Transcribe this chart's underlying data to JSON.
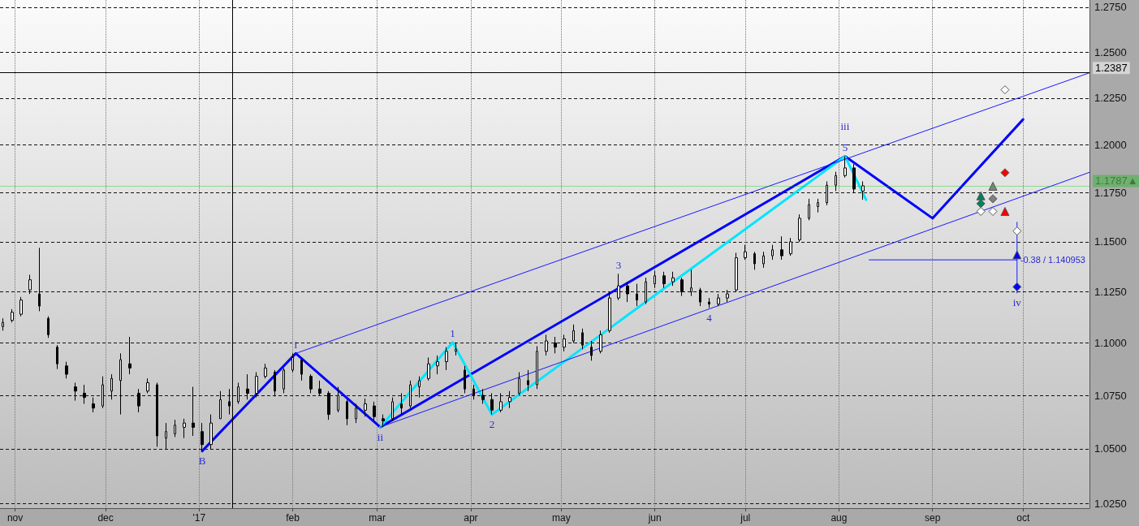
{
  "chart_data": {
    "type": "candlestick",
    "x": [
      "2016-10-28",
      "2016-10-31",
      "2016-11-03",
      "2016-11-06",
      "2016-11-09",
      "2016-11-12",
      "2016-11-15",
      "2016-11-18",
      "2016-11-21",
      "2016-11-24",
      "2016-11-27",
      "2016-11-30",
      "2016-12-03",
      "2016-12-06",
      "2016-12-09",
      "2016-12-12",
      "2016-12-15",
      "2016-12-18",
      "2016-12-21",
      "2016-12-24",
      "2016-12-27",
      "2016-12-30",
      "2017-01-02",
      "2017-01-05",
      "2017-01-08",
      "2017-01-11",
      "2017-01-14",
      "2017-01-17",
      "2017-01-20",
      "2017-01-23",
      "2017-01-26",
      "2017-01-29",
      "2017-02-01",
      "2017-02-04",
      "2017-02-07",
      "2017-02-10",
      "2017-02-13",
      "2017-02-16",
      "2017-02-19",
      "2017-02-22",
      "2017-02-25",
      "2017-02-28",
      "2017-03-03",
      "2017-03-06",
      "2017-03-09",
      "2017-03-12",
      "2017-03-15",
      "2017-03-18",
      "2017-03-21",
      "2017-03-24",
      "2017-03-27",
      "2017-03-30",
      "2017-04-02",
      "2017-04-05",
      "2017-04-08",
      "2017-04-11",
      "2017-04-14",
      "2017-04-17",
      "2017-04-20",
      "2017-04-23",
      "2017-04-26",
      "2017-04-29",
      "2017-05-02",
      "2017-05-05",
      "2017-05-08",
      "2017-05-11",
      "2017-05-14",
      "2017-05-17",
      "2017-05-20",
      "2017-05-23",
      "2017-05-26",
      "2017-05-29",
      "2017-06-01",
      "2017-06-04",
      "2017-06-07",
      "2017-06-10",
      "2017-06-13",
      "2017-06-16",
      "2017-06-19",
      "2017-06-22",
      "2017-06-25",
      "2017-06-28",
      "2017-07-01",
      "2017-07-04",
      "2017-07-07",
      "2017-07-10",
      "2017-07-13",
      "2017-07-16",
      "2017-07-19",
      "2017-07-22",
      "2017-07-25",
      "2017-07-28",
      "2017-07-31",
      "2017-08-03",
      "2017-08-06",
      "2017-08-09"
    ],
    "ohlc": [
      [
        1.108,
        1.112,
        1.106,
        1.11
      ],
      [
        1.111,
        1.1165,
        1.11,
        1.115
      ],
      [
        1.114,
        1.1225,
        1.113,
        1.121
      ],
      [
        1.126,
        1.1335,
        1.124,
        1.131
      ],
      [
        1.124,
        1.147,
        1.1155,
        1.118
      ],
      [
        1.112,
        1.113,
        1.1025,
        1.104
      ],
      [
        1.098,
        1.099,
        1.0875,
        1.09
      ],
      [
        1.089,
        1.091,
        1.083,
        1.085
      ],
      [
        1.079,
        1.081,
        1.0725,
        1.077
      ],
      [
        1.076,
        1.08,
        1.071,
        1.074
      ],
      [
        1.071,
        1.074,
        1.067,
        1.069
      ],
      [
        1.07,
        1.084,
        1.069,
        1.08
      ],
      [
        1.077,
        1.085,
        1.073,
        1.083
      ],
      [
        1.082,
        1.095,
        1.066,
        1.092
      ],
      [
        1.09,
        1.103,
        1.085,
        1.088
      ],
      [
        1.076,
        1.078,
        1.067,
        1.07
      ],
      [
        1.077,
        1.083,
        1.076,
        1.081
      ],
      [
        1.08,
        1.081,
        1.051,
        1.056
      ],
      [
        1.055,
        1.062,
        1.05,
        1.058
      ],
      [
        1.057,
        1.0635,
        1.0555,
        1.061
      ],
      [
        1.06,
        1.064,
        1.055,
        1.062
      ],
      [
        1.062,
        1.079,
        1.056,
        1.06
      ],
      [
        1.058,
        1.062,
        1.049,
        1.052
      ],
      [
        1.052,
        1.066,
        1.05,
        1.062
      ],
      [
        1.064,
        1.077,
        1.064,
        1.073
      ],
      [
        1.072,
        1.078,
        1.066,
        1.07
      ],
      [
        1.072,
        1.081,
        1.071,
        1.079
      ],
      [
        1.078,
        1.085,
        1.073,
        1.076
      ],
      [
        1.076,
        1.086,
        1.074,
        1.084
      ],
      [
        1.084,
        1.09,
        1.083,
        1.088
      ],
      [
        1.086,
        1.087,
        1.0745,
        1.077
      ],
      [
        1.078,
        1.088,
        1.076,
        1.087
      ],
      [
        1.087,
        1.095,
        1.086,
        1.093
      ],
      [
        1.092,
        1.093,
        1.082,
        1.085
      ],
      [
        1.084,
        1.085,
        1.076,
        1.078
      ],
      [
        1.078,
        1.082,
        1.075,
        1.076
      ],
      [
        1.076,
        1.077,
        1.0635,
        1.066
      ],
      [
        1.068,
        1.079,
        1.067,
        1.075
      ],
      [
        1.072,
        1.073,
        1.061,
        1.064
      ],
      [
        1.064,
        1.071,
        1.062,
        1.069
      ],
      [
        1.068,
        1.0735,
        1.065,
        1.071
      ],
      [
        1.07,
        1.072,
        1.063,
        1.065
      ],
      [
        1.064,
        1.066,
        1.0601,
        1.063
      ],
      [
        1.064,
        1.074,
        1.063,
        1.072
      ],
      [
        1.071,
        1.076,
        1.066,
        1.069
      ],
      [
        1.07,
        1.082,
        1.069,
        1.08
      ],
      [
        1.079,
        1.084,
        1.074,
        1.082
      ],
      [
        1.083,
        1.093,
        1.082,
        1.09
      ],
      [
        1.089,
        1.094,
        1.085,
        1.091
      ],
      [
        1.091,
        1.098,
        1.087,
        1.096
      ],
      [
        1.096,
        1.1003,
        1.094,
        1.097
      ],
      [
        1.087,
        1.089,
        1.076,
        1.078
      ],
      [
        1.078,
        1.08,
        1.073,
        1.075
      ],
      [
        1.075,
        1.078,
        1.071,
        1.073
      ],
      [
        1.073,
        1.076,
        1.066,
        1.068
      ],
      [
        1.068,
        1.076,
        1.067,
        1.072
      ],
      [
        1.072,
        1.077,
        1.069,
        1.074
      ],
      [
        1.076,
        1.086,
        1.075,
        1.083
      ],
      [
        1.082,
        1.087,
        1.077,
        1.08
      ],
      [
        1.08,
        1.0985,
        1.078,
        1.096
      ],
      [
        1.096,
        1.104,
        1.094,
        1.101
      ],
      [
        1.1,
        1.103,
        1.095,
        1.098
      ],
      [
        1.098,
        1.104,
        1.096,
        1.102
      ],
      [
        1.101,
        1.109,
        1.1,
        1.106
      ],
      [
        1.105,
        1.107,
        1.097,
        1.099
      ],
      [
        1.098,
        1.101,
        1.0915,
        1.094
      ],
      [
        1.096,
        1.106,
        1.095,
        1.104
      ],
      [
        1.106,
        1.125,
        1.105,
        1.122
      ],
      [
        1.122,
        1.134,
        1.121,
        1.128
      ],
      [
        1.128,
        1.13,
        1.12,
        1.124
      ],
      [
        1.124,
        1.129,
        1.118,
        1.121
      ],
      [
        1.12,
        1.132,
        1.119,
        1.13
      ],
      [
        1.129,
        1.1355,
        1.127,
        1.133
      ],
      [
        1.133,
        1.135,
        1.127,
        1.129
      ],
      [
        1.13,
        1.135,
        1.128,
        1.132
      ],
      [
        1.131,
        1.132,
        1.123,
        1.125
      ],
      [
        1.125,
        1.136,
        1.123,
        1.127
      ],
      [
        1.126,
        1.127,
        1.118,
        1.12
      ],
      [
        1.12,
        1.122,
        1.1171,
        1.119
      ],
      [
        1.119,
        1.124,
        1.118,
        1.122
      ],
      [
        1.122,
        1.126,
        1.12,
        1.124
      ],
      [
        1.126,
        1.1445,
        1.125,
        1.142
      ],
      [
        1.142,
        1.1485,
        1.141,
        1.145
      ],
      [
        1.144,
        1.145,
        1.136,
        1.139
      ],
      [
        1.139,
        1.145,
        1.137,
        1.143
      ],
      [
        1.143,
        1.1485,
        1.141,
        1.146
      ],
      [
        1.146,
        1.1528,
        1.141,
        1.143
      ],
      [
        1.144,
        1.152,
        1.143,
        1.15
      ],
      [
        1.151,
        1.164,
        1.15,
        1.162
      ],
      [
        1.162,
        1.172,
        1.161,
        1.169
      ],
      [
        1.168,
        1.172,
        1.165,
        1.17
      ],
      [
        1.17,
        1.181,
        1.1687,
        1.179
      ],
      [
        1.179,
        1.186,
        1.176,
        1.184
      ],
      [
        1.184,
        1.1941,
        1.183,
        1.188
      ],
      [
        1.188,
        1.19,
        1.175,
        1.177
      ],
      [
        1.176,
        1.181,
        1.1715,
        1.1787
      ]
    ],
    "series": [
      {
        "type": "line",
        "color": "#0000ff",
        "x": [
          "2017-01-02",
          "2017-02-02",
          "2017-03-02",
          "2017-08-03",
          "2017-09-01",
          "2017-10-01"
        ],
        "values": [
          1.049,
          1.095,
          1.0601,
          1.1941,
          1.162,
          1.2136
        ]
      },
      {
        "type": "line",
        "color": "#00e5ff",
        "x": [
          "2017-03-02",
          "2017-03-26",
          "2017-04-08",
          "2017-08-03",
          "2017-08-10"
        ],
        "values": [
          1.0601,
          1.1003,
          1.066,
          1.1941,
          1.1715
        ]
      },
      {
        "type": "line",
        "color": "#1a1aff",
        "x": [
          "2017-02-02",
          "2017-10-23"
        ],
        "values": [
          1.095,
          1.2387
        ]
      },
      {
        "type": "line",
        "color": "#1a1aff",
        "x": [
          "2017-03-02",
          "2017-10-23"
        ],
        "values": [
          1.0601,
          1.1857
        ]
      },
      {
        "type": "line",
        "color": "#1a1aff",
        "x": [
          "2017-08-11",
          "2017-09-29"
        ],
        "values": [
          1.140953,
          1.140953
        ]
      },
      {
        "type": "line",
        "color": "#1a1aff",
        "x": [
          "2017-09-29",
          "2017-09-29"
        ],
        "values": [
          1.16,
          1.1245
        ]
      },
      {
        "type": "scatter",
        "marker": "triangle",
        "color": "#008060",
        "x": [
          "2017-09-17"
        ],
        "values": [
          1.1735
        ]
      },
      {
        "type": "scatter",
        "marker": "diamond",
        "color": "#008060",
        "x": [
          "2017-09-17"
        ],
        "values": [
          1.1695
        ]
      },
      {
        "type": "scatter",
        "marker": "triangle",
        "color": "#808080",
        "x": [
          "2017-09-21"
        ],
        "values": [
          1.1785
        ]
      },
      {
        "type": "scatter",
        "marker": "diamond",
        "color": "#808080",
        "x": [
          "2017-09-21"
        ],
        "values": [
          1.172
        ]
      },
      {
        "type": "scatter",
        "marker": "diamond",
        "color": "#ff0000",
        "x": [
          "2017-09-25"
        ],
        "values": [
          1.1855
        ]
      },
      {
        "type": "scatter",
        "marker": "triangle",
        "color": "#ff0000",
        "x": [
          "2017-09-25"
        ],
        "values": [
          1.1655
        ]
      },
      {
        "type": "scatter",
        "marker": "diamond",
        "color": "#ffffff",
        "x": [
          "2017-09-17",
          "2017-09-21",
          "2017-09-25",
          "2017-09-29"
        ],
        "values": [
          1.1655,
          1.1655,
          1.2295,
          1.1555
        ]
      },
      {
        "type": "scatter",
        "marker": "triangle",
        "color": "#0000ff",
        "x": [
          "2017-09-29"
        ],
        "values": [
          1.1435
        ]
      },
      {
        "type": "scatter",
        "marker": "diamond",
        "color": "#0000ff",
        "x": [
          "2017-09-29"
        ],
        "values": [
          1.1275
        ]
      }
    ],
    "xlim": [
      "2016-10-27",
      "2017-10-23"
    ],
    "xticks": [
      {
        "value": "2016-11-01",
        "label": "nov"
      },
      {
        "value": "2016-12-01",
        "label": "dec"
      },
      {
        "value": "2017-01-01",
        "label": "'17"
      },
      {
        "value": "2017-02-01",
        "label": "feb"
      },
      {
        "value": "2017-03-01",
        "label": "mar"
      },
      {
        "value": "2017-04-01",
        "label": "apr"
      },
      {
        "value": "2017-05-01",
        "label": "may"
      },
      {
        "value": "2017-06-01",
        "label": "jun"
      },
      {
        "value": "2017-07-01",
        "label": "jul"
      },
      {
        "value": "2017-08-01",
        "label": "aug"
      },
      {
        "value": "2017-09-01",
        "label": "sep"
      },
      {
        "value": "2017-10-01",
        "label": "oct"
      }
    ],
    "ylim": [
      1.023,
      1.279
    ],
    "yticks": [
      {
        "value": 1.025,
        "label": "1.0250"
      },
      {
        "value": 1.05,
        "label": "1.0500"
      },
      {
        "value": 1.075,
        "label": "1.0750"
      },
      {
        "value": 1.1,
        "label": "1.1000"
      },
      {
        "value": 1.125,
        "label": "1.1250"
      },
      {
        "value": 1.15,
        "label": "1.1500"
      },
      {
        "value": 1.175,
        "label": "1.1750"
      },
      {
        "value": 1.2,
        "label": "1.2000"
      },
      {
        "value": 1.225,
        "label": "1.2250"
      },
      {
        "value": 1.25,
        "label": "1.2500"
      },
      {
        "value": 1.275,
        "label": "1.2750"
      }
    ],
    "log": true,
    "grid": true,
    "ref_lines": [
      {
        "axis": "y",
        "value": 1.2387,
        "label": "1.2387",
        "color": "#000000"
      },
      {
        "axis": "y",
        "value": 1.1787,
        "label": "1.1787▲",
        "color": "#00c000"
      },
      {
        "axis": "x",
        "value": "2017-01-12",
        "color": "#000000"
      }
    ],
    "annotations": [
      {
        "text": "B",
        "x": "2017-01-02",
        "y": 1.049
      },
      {
        "text": "i",
        "x": "2017-02-02",
        "y": 1.095
      },
      {
        "text": "ii",
        "x": "2017-03-02",
        "y": 1.0601
      },
      {
        "text": "5",
        "x": "2017-08-03",
        "y": 1.1941
      },
      {
        "text": "iii",
        "x": "2017-08-03",
        "y": 1.1941
      },
      {
        "text": "iv",
        "x": "2017-09-29",
        "y": 1.1245
      },
      {
        "text": "1",
        "x": "2017-03-26",
        "y": 1.1003
      },
      {
        "text": "2",
        "x": "2017-04-08",
        "y": 1.066
      },
      {
        "text": "3",
        "x": "2017-05-20",
        "y": 1.134
      },
      {
        "text": "4",
        "x": "2017-06-19",
        "y": 1.1171
      },
      {
        "text": "-0.38 / 1.140953",
        "x": "2017-09-29",
        "y": 1.140953
      }
    ]
  }
}
